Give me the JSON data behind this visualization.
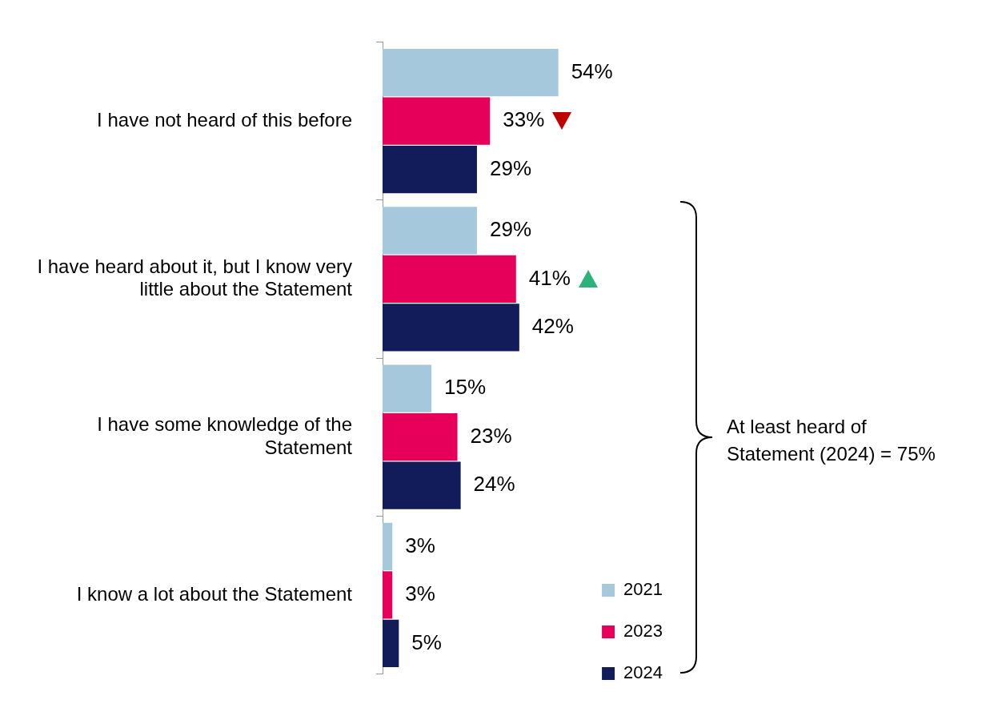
{
  "chart_data": {
    "type": "bar",
    "orientation": "horizontal",
    "categories": [
      "I have not heard of this before",
      "I have heard about it, but I know very little about the Statement",
      "I have some knowledge of the Statement",
      "I know a lot about the Statement"
    ],
    "series": [
      {
        "name": "2021",
        "color": "#a5c8dd",
        "values": [
          54,
          29,
          15,
          3
        ],
        "value_labels": [
          "54%",
          "29%",
          "15%",
          "3%"
        ]
      },
      {
        "name": "2023",
        "color": "#e6005a",
        "values": [
          33,
          41,
          23,
          3
        ],
        "value_labels": [
          "33%",
          "41%",
          "23%",
          "3%"
        ]
      },
      {
        "name": "2024",
        "color": "#121c5a",
        "values": [
          29,
          42,
          24,
          5
        ],
        "value_labels": [
          "29%",
          "42%",
          "24%",
          "5%"
        ]
      }
    ],
    "legend": "bottom right",
    "annotations": [
      "At least heard of Statement (2024) = 75%"
    ]
  }
}
